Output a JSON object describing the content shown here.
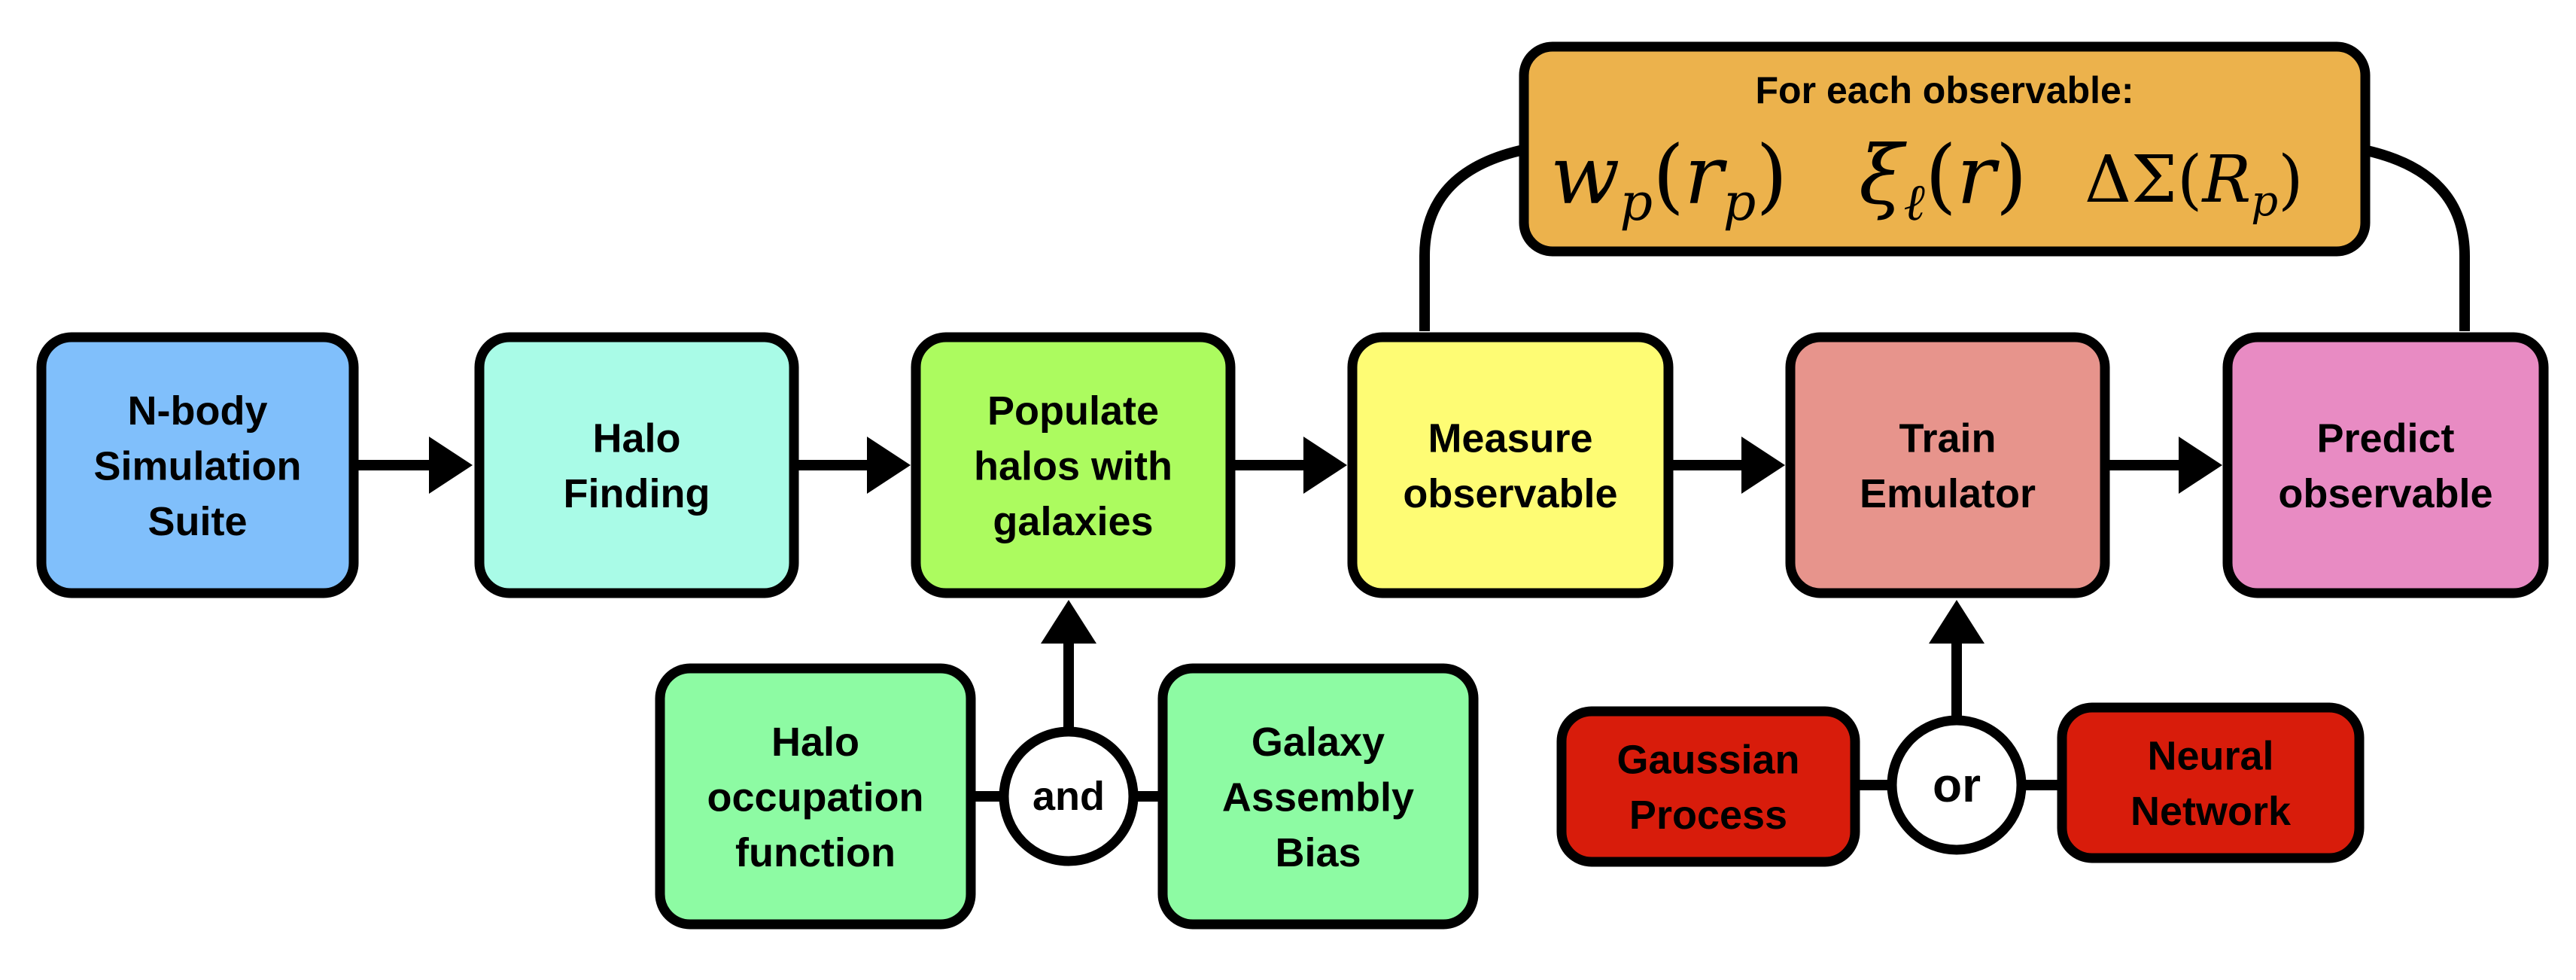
{
  "nodes": {
    "nbody": {
      "lines": [
        "N-body",
        "Simulation",
        "Suite"
      ],
      "color": "#80bffb"
    },
    "halo_find": {
      "lines": [
        "Halo",
        "Finding"
      ],
      "color": "#a9fbe7"
    },
    "populate": {
      "lines": [
        "Populate",
        "halos with",
        "galaxies"
      ],
      "color": "#acfb5f"
    },
    "measure": {
      "lines": [
        "Measure",
        "observable"
      ],
      "color": "#fefc74"
    },
    "train": {
      "lines": [
        "Train",
        "Emulator"
      ],
      "color": "#e7948c"
    },
    "predict": {
      "lines": [
        "Predict",
        "observable"
      ],
      "color": "#e88bc3"
    },
    "hof": {
      "lines": [
        "Halo",
        "occupation",
        "function"
      ],
      "color": "#8dfba3"
    },
    "gab": {
      "lines": [
        "Galaxy",
        "Assembly",
        "Bias"
      ],
      "color": "#8dfba3"
    },
    "gp": {
      "lines": [
        "Gaussian",
        "Process"
      ],
      "color": "#d81c0b"
    },
    "nn": {
      "lines": [
        "Neural",
        "Network"
      ],
      "color": "#d81c0b"
    }
  },
  "connectors": {
    "and_label": "and",
    "or_label": "or"
  },
  "observables": {
    "heading": "For each observable:",
    "color": "#ecb24c",
    "formulas": [
      "w_p(r_p)",
      "ξ_ℓ(r)",
      "ΔΣ(R_p)"
    ]
  }
}
